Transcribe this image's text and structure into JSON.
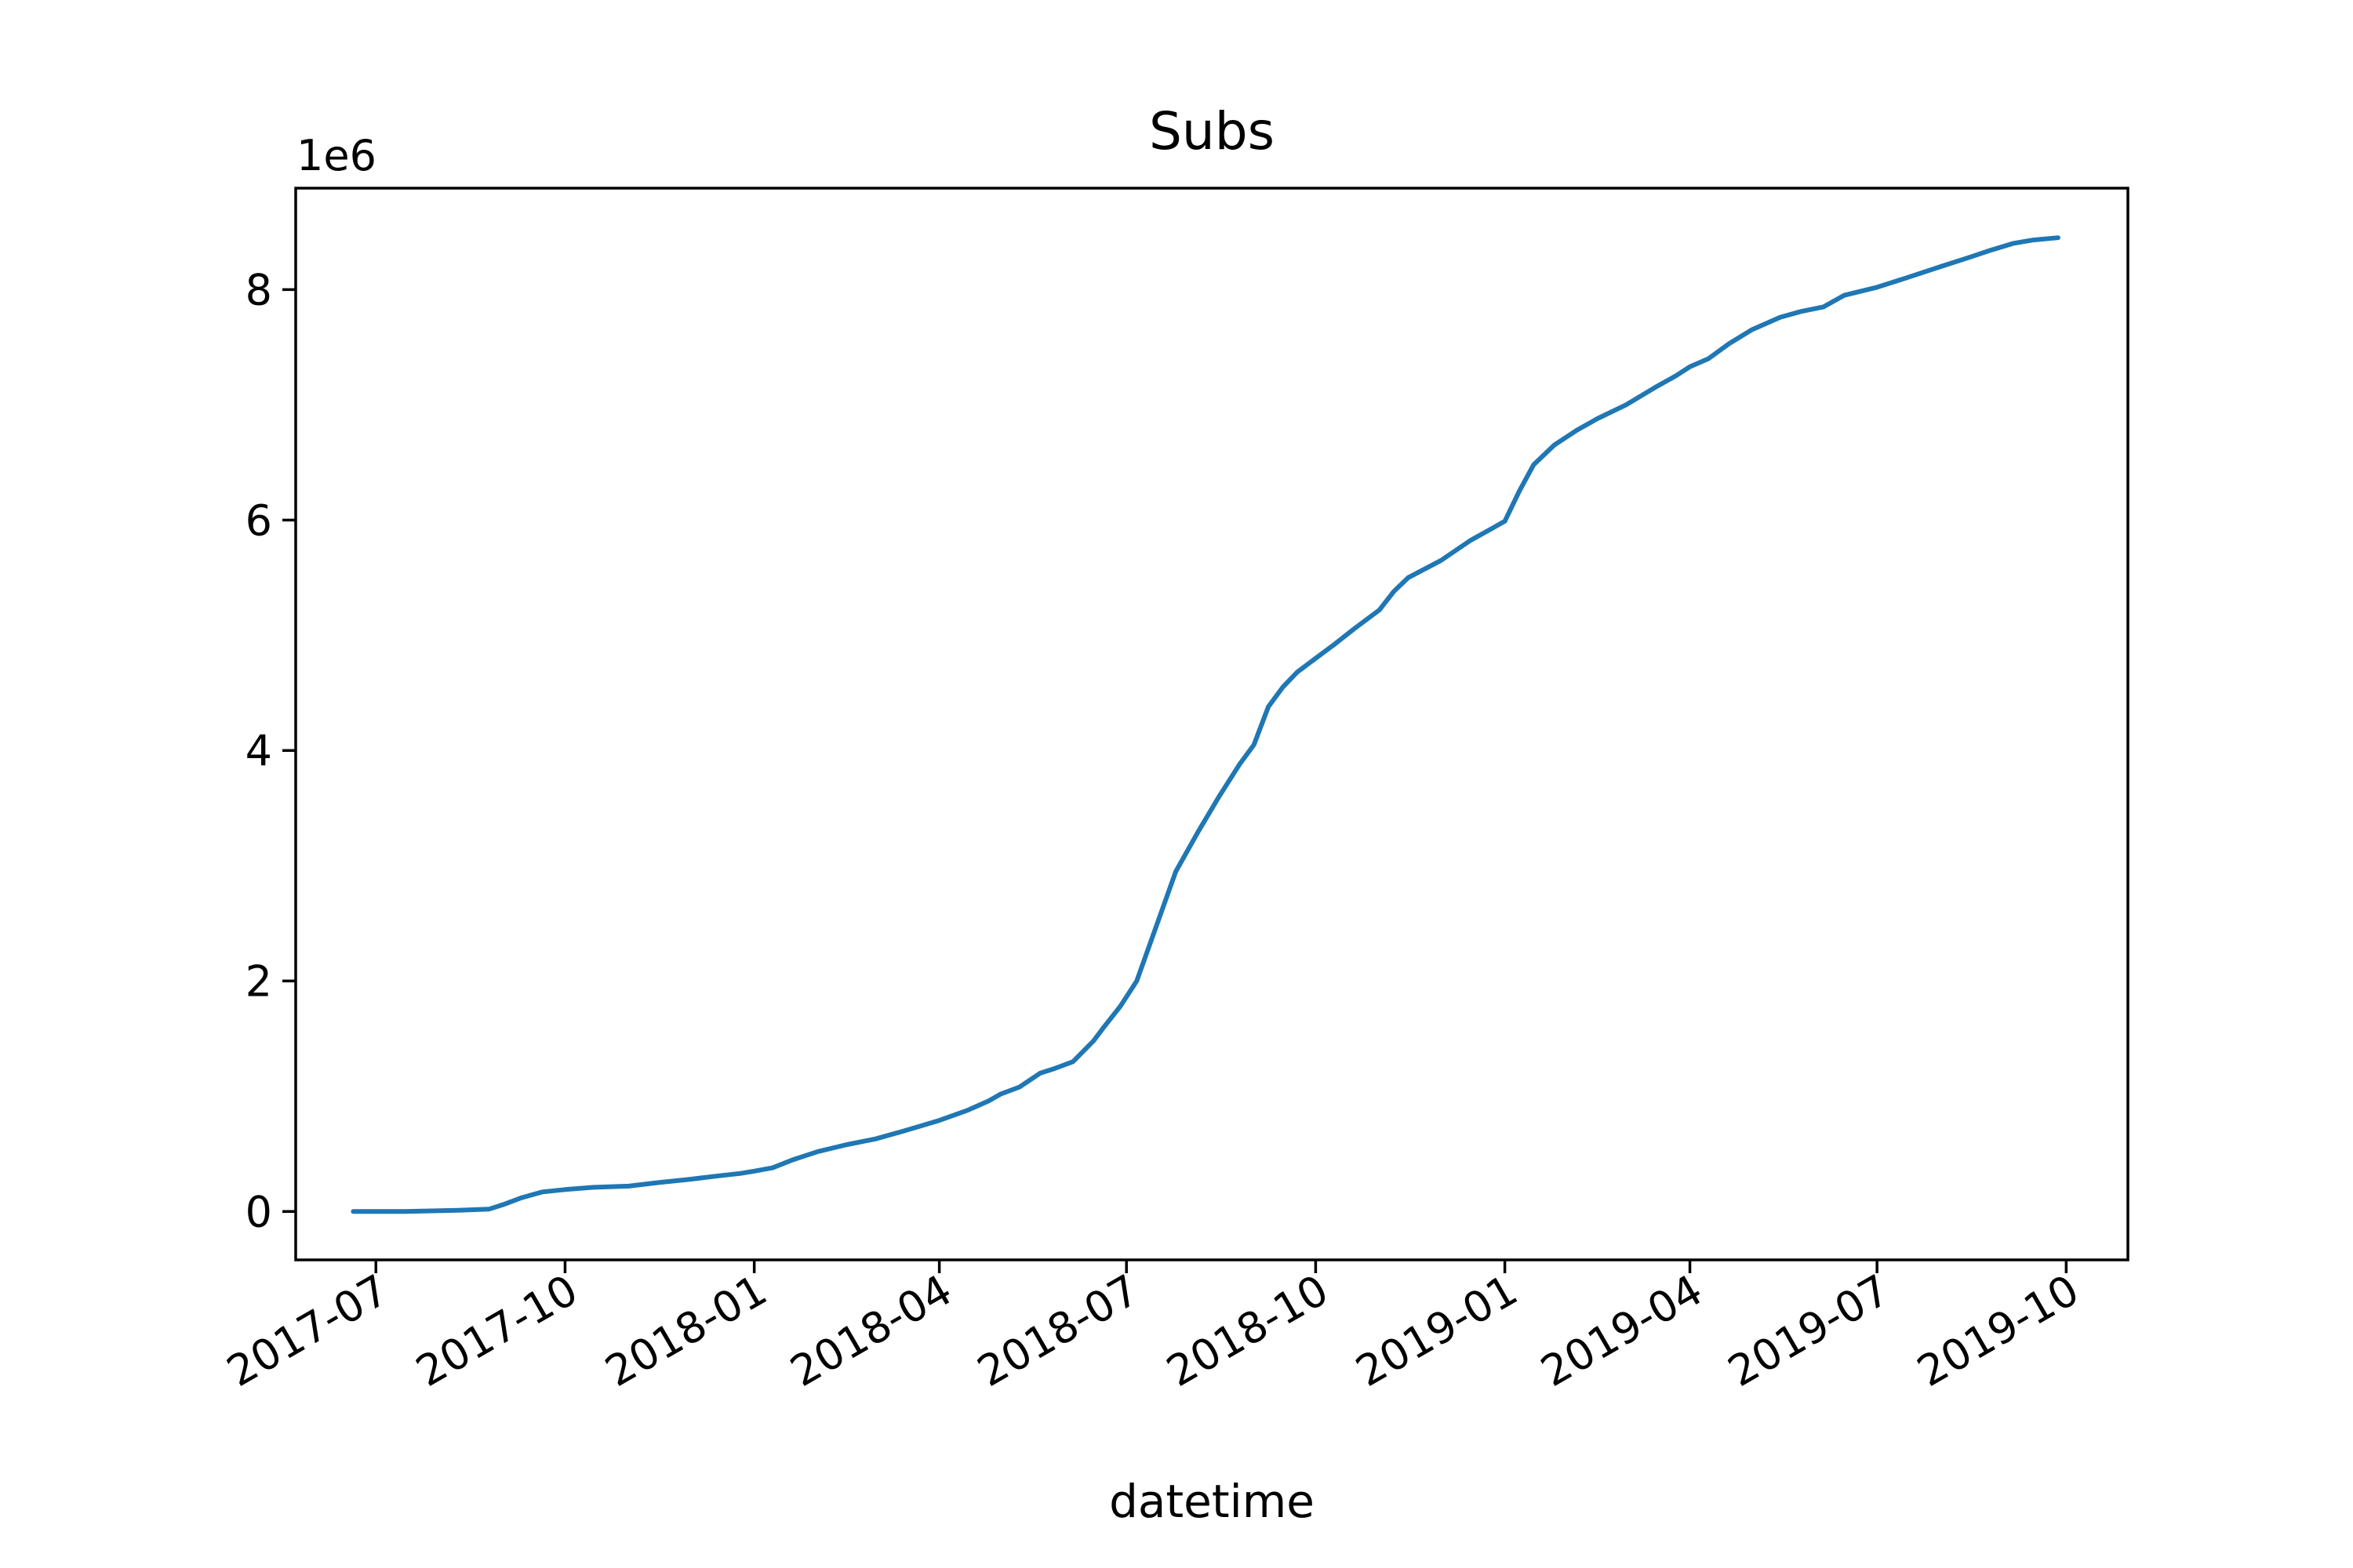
{
  "chart_data": {
    "type": "line",
    "title": "Subs",
    "xlabel": "datetime",
    "ylabel": "",
    "y_offset_label": "1e6",
    "grid": false,
    "legend": "none",
    "x_range": [
      "2017-05-23",
      "2019-10-31"
    ],
    "y_range": [
      -0.42,
      8.88
    ],
    "x_ticks": [
      "2017-07",
      "2017-10",
      "2018-01",
      "2018-04",
      "2018-07",
      "2018-10",
      "2019-01",
      "2019-04",
      "2019-07",
      "2019-10"
    ],
    "y_ticks": [
      0,
      2,
      4,
      6,
      8
    ],
    "y_tick_labels": [
      "0",
      "2",
      "4",
      "6",
      "8"
    ],
    "line_color": "#1f77b4",
    "series": [
      {
        "x": [
          "2017-06-20",
          "2017-07-15",
          "2017-08-10",
          "2017-08-25",
          "2017-09-01",
          "2017-09-10",
          "2017-09-20",
          "2017-10-01",
          "2017-10-15",
          "2017-11-01",
          "2017-11-15",
          "2017-12-01",
          "2017-12-15",
          "2017-12-25",
          "2018-01-01",
          "2018-01-10",
          "2018-01-20",
          "2018-02-01",
          "2018-02-15",
          "2018-03-01",
          "2018-03-15",
          "2018-04-01",
          "2018-04-15",
          "2018-04-25",
          "2018-05-01",
          "2018-05-10",
          "2018-05-20",
          "2018-05-27",
          "2018-06-05",
          "2018-06-15",
          "2018-06-20",
          "2018-06-28",
          "2018-07-06",
          "2018-07-15",
          "2018-07-25",
          "2018-08-05",
          "2018-08-15",
          "2018-08-25",
          "2018-09-01",
          "2018-09-08",
          "2018-09-15",
          "2018-09-22",
          "2018-10-01",
          "2018-10-10",
          "2018-10-20",
          "2018-11-01",
          "2018-11-08",
          "2018-11-15",
          "2018-12-01",
          "2018-12-15",
          "2018-12-25",
          "2019-01-01",
          "2019-01-08",
          "2019-01-15",
          "2019-01-25",
          "2019-02-05",
          "2019-02-15",
          "2019-03-01",
          "2019-03-15",
          "2019-03-25",
          "2019-04-01",
          "2019-04-10",
          "2019-04-20",
          "2019-05-01",
          "2019-05-15",
          "2019-05-25",
          "2019-06-05",
          "2019-06-15",
          "2019-07-01",
          "2019-07-15",
          "2019-08-01",
          "2019-08-15",
          "2019-08-25",
          "2019-09-05",
          "2019-09-15",
          "2019-09-27"
        ],
        "y": [
          0.0,
          0.0,
          0.01,
          0.02,
          0.06,
          0.12,
          0.17,
          0.19,
          0.21,
          0.22,
          0.25,
          0.28,
          0.31,
          0.33,
          0.35,
          0.38,
          0.45,
          0.52,
          0.58,
          0.63,
          0.7,
          0.79,
          0.88,
          0.96,
          1.02,
          1.08,
          1.2,
          1.24,
          1.3,
          1.48,
          1.6,
          1.78,
          2.0,
          2.45,
          2.95,
          3.3,
          3.6,
          3.88,
          4.05,
          4.38,
          4.55,
          4.68,
          4.8,
          4.92,
          5.06,
          5.22,
          5.38,
          5.5,
          5.65,
          5.82,
          5.92,
          5.99,
          6.25,
          6.48,
          6.65,
          6.78,
          6.88,
          7.0,
          7.15,
          7.25,
          7.33,
          7.4,
          7.53,
          7.65,
          7.76,
          7.81,
          7.85,
          7.95,
          8.02,
          8.1,
          8.2,
          8.28,
          8.34,
          8.4,
          8.43,
          8.45
        ]
      }
    ]
  }
}
